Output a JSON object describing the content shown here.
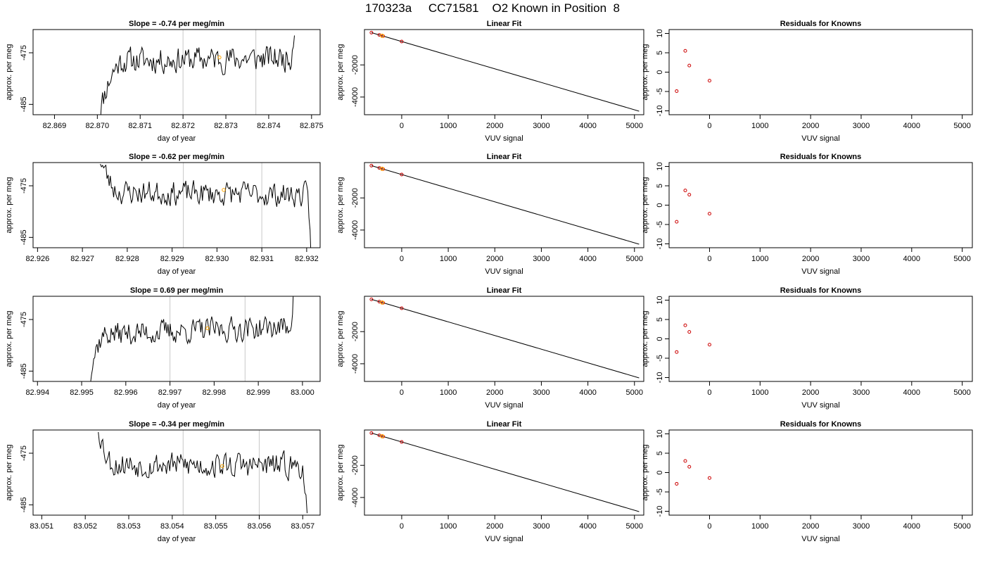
{
  "page_title": "170323a     CC71581    O2 Known in Position  8",
  "colors": {
    "trace": "#000000",
    "marker": "#FFA500",
    "residual": "#CC0000",
    "vline": "#C8C8C8"
  },
  "chart_data": [
    {
      "type": "line",
      "title": "Slope =  -0.74  per meg/min",
      "xlabel": "day of year",
      "ylabel": "approx. per meg",
      "xlim": [
        82.8685,
        82.8752
      ],
      "ylim": [
        -487,
        -470.5
      ],
      "xticks": [
        "82.869",
        "82.870",
        "82.871",
        "82.872",
        "82.873",
        "82.874",
        "82.875"
      ],
      "yticks": [
        "-475",
        "-485"
      ],
      "ytick_values": [
        -475,
        -485
      ],
      "vlines": [
        82.872,
        82.8737
      ],
      "marker": {
        "x": 82.87285,
        "y": -475.9
      },
      "trace": {
        "start": 82.87,
        "end": 82.8746,
        "level": -476.3,
        "noise": 1.6,
        "seed": 11,
        "start_y": -488,
        "end_y": -470,
        "ramp": 0.14,
        "trend": 0.3
      }
    },
    {
      "type": "line",
      "title": "Linear Fit",
      "xlabel": "VUV signal",
      "ylabel": "approx. per meg",
      "xlim": [
        -800,
        5200
      ],
      "ylim": [
        -5100,
        200
      ],
      "xticks": [
        "0",
        "1000",
        "2000",
        "3000",
        "4000",
        "5000"
      ],
      "xtick_values": [
        0,
        1000,
        2000,
        3000,
        4000,
        5000
      ],
      "yticks": [
        "-2000",
        "-4000"
      ],
      "ytick_values": [
        -2000,
        -4000
      ],
      "line": [
        [
          -650,
          10
        ],
        [
          5100,
          -4880
        ]
      ],
      "points": [
        [
          -650,
          10
        ],
        [
          -480,
          -135
        ],
        [
          -400,
          -205
        ],
        [
          0,
          -545
        ]
      ],
      "marker": [
        -420,
        -190
      ]
    },
    {
      "type": "scatter",
      "title": "Residuals for Knowns",
      "xlabel": "VUV signal",
      "ylabel": "approx. per meg",
      "xlim": [
        -800,
        5200
      ],
      "ylim": [
        -11,
        11
      ],
      "xticks": [
        "0",
        "1000",
        "2000",
        "3000",
        "4000",
        "5000"
      ],
      "xtick_values": [
        0,
        1000,
        2000,
        3000,
        4000,
        5000
      ],
      "yticks": [
        "10",
        "5",
        "0",
        "-5",
        "-10"
      ],
      "ytick_values": [
        10,
        5,
        0,
        -5,
        -10
      ],
      "points": [
        [
          -650,
          -4.9
        ],
        [
          -480,
          5.5
        ],
        [
          -400,
          1.7
        ],
        [
          0,
          -2.2
        ]
      ]
    },
    {
      "type": "line",
      "title": "Slope =  -0.62  per meg/min",
      "xlabel": "day of year",
      "ylabel": "approx. per meg",
      "xlim": [
        82.9259,
        82.9323
      ],
      "ylim": [
        -487,
        -470.5
      ],
      "xticks": [
        "82.926",
        "82.927",
        "82.928",
        "82.929",
        "82.930",
        "82.931",
        "82.932"
      ],
      "yticks": [
        "-475",
        "-485"
      ],
      "ytick_values": [
        -475,
        -485
      ],
      "vlines": [
        82.92925,
        82.931
      ],
      "marker": {
        "x": 82.93015,
        "y": -475.8
      },
      "trace": {
        "start": 82.9274,
        "end": 82.9321,
        "level": -476.5,
        "noise": 1.5,
        "seed": 23,
        "start_y": -470,
        "end_y": -488,
        "ramp": 0.1,
        "trend": -0.3
      }
    },
    {
      "type": "line",
      "title": "Linear Fit",
      "xlabel": "VUV signal",
      "ylabel": "approx. per meg",
      "xlim": [
        -800,
        5200
      ],
      "ylim": [
        -5100,
        200
      ],
      "xticks": [
        "0",
        "1000",
        "2000",
        "3000",
        "4000",
        "5000"
      ],
      "xtick_values": [
        0,
        1000,
        2000,
        3000,
        4000,
        5000
      ],
      "yticks": [
        "-2000",
        "-4000"
      ],
      "ytick_values": [
        -2000,
        -4000
      ],
      "line": [
        [
          -650,
          10
        ],
        [
          5100,
          -4880
        ]
      ],
      "points": [
        [
          -650,
          10
        ],
        [
          -480,
          -135
        ],
        [
          -400,
          -205
        ],
        [
          0,
          -545
        ]
      ],
      "marker": [
        -420,
        -190
      ]
    },
    {
      "type": "scatter",
      "title": "Residuals for Knowns",
      "xlabel": "VUV signal",
      "ylabel": "approx. per meg",
      "xlim": [
        -800,
        5200
      ],
      "ylim": [
        -11,
        11
      ],
      "xticks": [
        "0",
        "1000",
        "2000",
        "3000",
        "4000",
        "5000"
      ],
      "xtick_values": [
        0,
        1000,
        2000,
        3000,
        4000,
        5000
      ],
      "yticks": [
        "10",
        "5",
        "0",
        "-5",
        "-10"
      ],
      "ytick_values": [
        10,
        5,
        0,
        -5,
        -10
      ],
      "points": [
        [
          -650,
          -4.3
        ],
        [
          -480,
          3.8
        ],
        [
          -400,
          2.7
        ],
        [
          0,
          -2.2
        ]
      ]
    },
    {
      "type": "line",
      "title": "Slope =  0.69  per meg/min",
      "xlabel": "day of year",
      "ylabel": "approx. per meg",
      "xlim": [
        82.9939,
        83.0004
      ],
      "ylim": [
        -487,
        -470.5
      ],
      "xticks": [
        "82.994",
        "82.995",
        "82.996",
        "82.997",
        "82.998",
        "82.999",
        "83.000"
      ],
      "yticks": [
        "-475",
        "-485"
      ],
      "ytick_values": [
        -475,
        -485
      ],
      "vlines": [
        82.997,
        82.9987
      ],
      "marker": {
        "x": 82.99785,
        "y": -476.7
      },
      "trace": {
        "start": 82.9951,
        "end": 82.9998,
        "level": -477.2,
        "noise": 1.5,
        "seed": 37,
        "start_y": -488,
        "end_y": -470,
        "ramp": 0.1,
        "trend": 0.8
      }
    },
    {
      "type": "line",
      "title": "Linear Fit",
      "xlabel": "VUV signal",
      "ylabel": "approx. per meg",
      "xlim": [
        -800,
        5200
      ],
      "ylim": [
        -5100,
        200
      ],
      "xticks": [
        "0",
        "1000",
        "2000",
        "3000",
        "4000",
        "5000"
      ],
      "xtick_values": [
        0,
        1000,
        2000,
        3000,
        4000,
        5000
      ],
      "yticks": [
        "-2000",
        "-4000"
      ],
      "ytick_values": [
        -2000,
        -4000
      ],
      "line": [
        [
          -650,
          10
        ],
        [
          5100,
          -4880
        ]
      ],
      "points": [
        [
          -650,
          10
        ],
        [
          -480,
          -135
        ],
        [
          -400,
          -205
        ],
        [
          0,
          -545
        ]
      ],
      "marker": [
        -420,
        -190
      ]
    },
    {
      "type": "scatter",
      "title": "Residuals for Knowns",
      "xlabel": "VUV signal",
      "ylabel": "approx. per meg",
      "xlim": [
        -800,
        5200
      ],
      "ylim": [
        -11,
        11
      ],
      "xticks": [
        "0",
        "1000",
        "2000",
        "3000",
        "4000",
        "5000"
      ],
      "xtick_values": [
        0,
        1000,
        2000,
        3000,
        4000,
        5000
      ],
      "yticks": [
        "10",
        "5",
        "0",
        "-5",
        "-10"
      ],
      "ytick_values": [
        10,
        5,
        0,
        -5,
        -10
      ],
      "points": [
        [
          -650,
          -3.4
        ],
        [
          -480,
          3.5
        ],
        [
          -400,
          1.8
        ],
        [
          0,
          -1.5
        ]
      ]
    },
    {
      "type": "line",
      "title": "Slope =  -0.34  per meg/min",
      "xlabel": "day of year",
      "ylabel": "approx. per meg",
      "xlim": [
        83.0508,
        83.0574
      ],
      "ylim": [
        -487,
        -470.5
      ],
      "xticks": [
        "83.051",
        "83.052",
        "83.053",
        "83.054",
        "83.055",
        "83.056",
        "83.057"
      ],
      "yticks": [
        "-475",
        "-485"
      ],
      "ytick_values": [
        -475,
        -485
      ],
      "vlines": [
        83.05425,
        83.056
      ],
      "marker": {
        "x": 83.05515,
        "y": -477.5
      },
      "trace": {
        "start": 83.0523,
        "end": 83.0571,
        "level": -477.3,
        "noise": 1.6,
        "seed": 53,
        "start_y": -470,
        "end_y": -488,
        "ramp": 0.08,
        "trend": -0.2
      }
    },
    {
      "type": "line",
      "title": "Linear Fit",
      "xlabel": "VUV signal",
      "ylabel": "approx. per meg",
      "xlim": [
        -800,
        5200
      ],
      "ylim": [
        -5100,
        200
      ],
      "xticks": [
        "0",
        "1000",
        "2000",
        "3000",
        "4000",
        "5000"
      ],
      "xtick_values": [
        0,
        1000,
        2000,
        3000,
        4000,
        5000
      ],
      "yticks": [
        "-2000",
        "-4000"
      ],
      "ytick_values": [
        -2000,
        -4000
      ],
      "line": [
        [
          -650,
          10
        ],
        [
          5100,
          -4880
        ]
      ],
      "points": [
        [
          -650,
          10
        ],
        [
          -480,
          -135
        ],
        [
          -400,
          -205
        ],
        [
          0,
          -545
        ]
      ],
      "marker": [
        -420,
        -190
      ]
    },
    {
      "type": "scatter",
      "title": "Residuals for Knowns",
      "xlabel": "VUV signal",
      "ylabel": "approx. per meg",
      "xlim": [
        -800,
        5200
      ],
      "ylim": [
        -11,
        11
      ],
      "xticks": [
        "0",
        "1000",
        "2000",
        "3000",
        "4000",
        "5000"
      ],
      "xtick_values": [
        0,
        1000,
        2000,
        3000,
        4000,
        5000
      ],
      "yticks": [
        "10",
        "5",
        "0",
        "-5",
        "-10"
      ],
      "ytick_values": [
        10,
        5,
        0,
        -5,
        -10
      ],
      "points": [
        [
          -650,
          -2.9
        ],
        [
          -480,
          3.0
        ],
        [
          -400,
          1.5
        ],
        [
          0,
          -1.4
        ]
      ]
    }
  ]
}
